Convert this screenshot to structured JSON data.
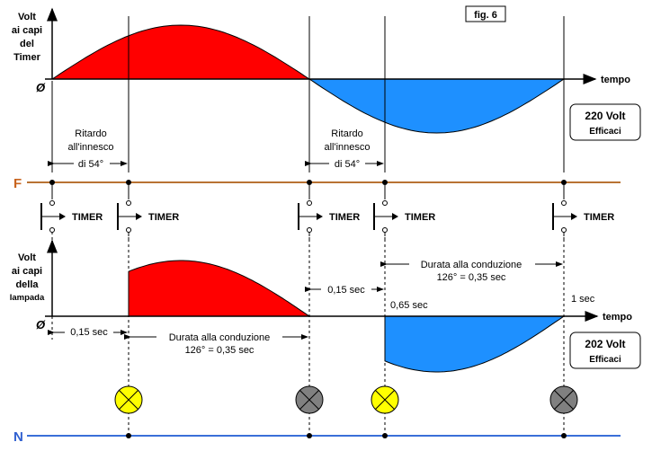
{
  "figure_label": "fig. 6",
  "top_axis_label": [
    "Volt",
    "ai capi",
    "del",
    "Timer"
  ],
  "bottom_axis_label": [
    "Volt",
    "ai capi",
    "della",
    "lampada"
  ],
  "origin_label": "Ø",
  "time_label": "tempo",
  "top_box": {
    "value": "220 Volt",
    "sub": "Efficaci"
  },
  "bottom_box": {
    "value": "202 Volt",
    "sub": "Efficaci"
  },
  "delay_label_1": [
    "Ritardo",
    "all'innesco",
    "di 54°"
  ],
  "delay_label_2": [
    "Ritardo",
    "all'innesco",
    "di 54°"
  ],
  "phase_label": "F",
  "neutral_label": "N",
  "timer_label": "TIMER",
  "conduction_label_1": [
    "Durata alla conduzione",
    "126° = 0,35 sec"
  ],
  "conduction_label_2": [
    "Durata alla conduzione",
    "126° = 0,35 sec"
  ],
  "time_marks": {
    "t1": "0,15 sec",
    "t2": "0,15 sec",
    "t3": "0,65 sec",
    "t4": "1 sec"
  },
  "colors": {
    "positive": "#ff0000",
    "negative": "#1e90ff",
    "phase_line": "#b87333",
    "neutral_line": "#3a6fd8",
    "lamp_on": "#ffff00",
    "lamp_off": "#808080",
    "phase_letter": "#c8641e",
    "neutral_letter": "#3060d0"
  },
  "lamps": [
    "on",
    "off",
    "on",
    "off"
  ]
}
